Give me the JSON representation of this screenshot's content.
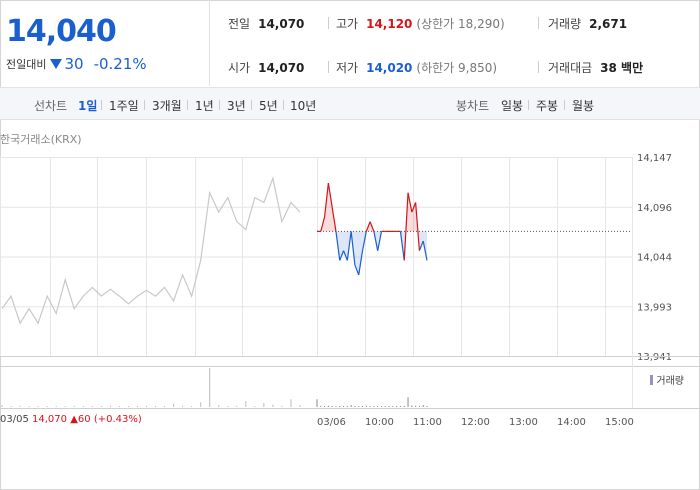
{
  "summary": {
    "current_price": "14,040",
    "diff_label": "전일대비",
    "diff_value": "30",
    "diff_rate": "-0.21%",
    "diff_direction": "down"
  },
  "stats": {
    "prev_close": {
      "label": "전일",
      "value": "14,070"
    },
    "high": {
      "label": "고가",
      "value": "14,120",
      "sub": "(상한가 18,290)"
    },
    "volume": {
      "label": "거래량",
      "value": "2,671"
    },
    "open": {
      "label": "시가",
      "value": "14,070"
    },
    "low": {
      "label": "저가",
      "value": "14,020",
      "sub": "(하한가 9,850)"
    },
    "amount": {
      "label": "거래대금",
      "value": "38 백만"
    }
  },
  "toolbar": {
    "line_label": "선차트",
    "line_ranges": [
      "1일",
      "1주일",
      "3개월",
      "1년",
      "3년",
      "5년",
      "10년"
    ],
    "active_range": "1일",
    "candle_label": "봉차트",
    "candle_ranges": [
      "일봉",
      "주봉",
      "월봉"
    ]
  },
  "chart_source": "한국거래소(KRX)",
  "colors": {
    "up": "#d7141a",
    "down": "#1a5fd0",
    "history": "#c8c8c8",
    "grid": "#e6e6e6"
  },
  "chart_data": {
    "type": "line",
    "xlabel": "",
    "ylabel": "",
    "ylim": [
      13941,
      14147
    ],
    "y_ticks": [
      "14,147",
      "14,096",
      "14,044",
      "13,993",
      "13,941"
    ],
    "x_ticks": [
      "03/05",
      "03/06",
      "10:00",
      "11:00",
      "12:00",
      "13:00",
      "14:00",
      "15:00"
    ],
    "reference_price": 14070,
    "previous_day": {
      "values": [
        13990,
        14003,
        13975,
        13990,
        13975,
        14003,
        13985,
        14020,
        13990,
        14003,
        14012,
        14003,
        14010,
        14003,
        13995,
        14003,
        14009,
        14003,
        14012,
        13998,
        14025,
        14003,
        14040,
        14110,
        14090,
        14105,
        14080,
        14072,
        14105,
        14100,
        14125,
        14080,
        14100,
        14090
      ]
    },
    "today": {
      "times": [
        "09:00",
        "09:05",
        "09:10",
        "09:15",
        "09:20",
        "09:25",
        "09:30",
        "09:35",
        "09:40",
        "09:45",
        "09:50",
        "09:55",
        "10:00",
        "10:05",
        "10:10",
        "10:15",
        "10:20",
        "10:25",
        "10:30",
        "10:35",
        "10:40",
        "10:45",
        "10:50",
        "10:55",
        "11:00",
        "11:02",
        "11:04",
        "11:06",
        "11:08",
        "11:10"
      ],
      "values": [
        14070,
        14070,
        14085,
        14120,
        14095,
        14070,
        14040,
        14050,
        14040,
        14070,
        14035,
        14025,
        14050,
        14070,
        14080,
        14070,
        14050,
        14070,
        14070,
        14070,
        14070,
        14070,
        14070,
        14040,
        14110,
        14090,
        14100,
        14050,
        14060,
        14040
      ]
    },
    "last_label": {
      "date": "03/05",
      "price": "14,070",
      "change": "60",
      "rate": "(+0.43%)"
    },
    "volume_label": "거래량",
    "volume": {
      "previous_day": [
        0.05,
        0.02,
        0.03,
        0.01,
        0.02,
        0.02,
        0.01,
        0.02,
        0.03,
        0.02,
        0.01,
        0.02,
        0.04,
        0.02,
        0.01,
        0.02,
        0.03,
        0.02,
        0.02,
        0.08,
        0.03,
        0.02,
        0.12,
        1.0,
        0.05,
        0.02,
        0.03,
        0.15,
        0.02,
        0.1,
        0.06,
        0.03,
        0.2,
        0.05
      ],
      "today": [
        0.2,
        0.03,
        0.02,
        0.03,
        0.02,
        0.01,
        0.02,
        0.01,
        0.02,
        0.05,
        0.02,
        0.01,
        0.02,
        0.03,
        0.02,
        0.01,
        0.02,
        0.02,
        0.01,
        0.02,
        0.01,
        0.02,
        0.01,
        0.03,
        0.25,
        0.04,
        0.03,
        0.02,
        0.05,
        0.02
      ]
    }
  }
}
